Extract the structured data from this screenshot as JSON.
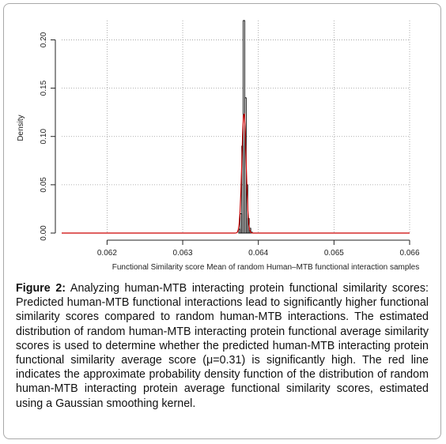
{
  "chart_data": {
    "type": "histogram",
    "xlabel": "Functional Similarity score Mean of random Human–MTB functional interaction samples",
    "ylabel": "Density",
    "xlim": [
      0.0614,
      0.066
    ],
    "ylim": [
      0,
      0.22
    ],
    "x_ticks": [
      "0.062",
      "0.063",
      "0.064",
      "0.065",
      "0.066"
    ],
    "x_tick_values": [
      0.062,
      0.063,
      0.064,
      0.065,
      0.066
    ],
    "y_ticks": [
      "0.00",
      "0.05",
      "0.10",
      "0.15",
      "0.20"
    ],
    "y_tick_values": [
      0.0,
      0.05,
      0.1,
      0.15,
      0.2
    ],
    "grid": true,
    "bin_width": 2e-05,
    "bins_x": [
      0.06374,
      0.06376,
      0.06378,
      0.0638,
      0.06382,
      0.06384,
      0.06386,
      0.06388,
      0.0639
    ],
    "bins_density": [
      0.004,
      0.02,
      0.09,
      0.22,
      0.14,
      0.05,
      0.015,
      0.005,
      0.001
    ],
    "density_curve": {
      "mean": 0.06381,
      "peak": 0.125,
      "sd": 2.8e-05,
      "color": "#cc0000"
    },
    "bar_color": "#000000"
  },
  "caption": {
    "label": "Figure 2:",
    "text": " Analyzing human-MTB interacting protein functional similarity scores: Predicted human-MTB functional interactions lead to significantly higher functional similarity scores compared to random human-MTB interactions. The estimated distribution of random human-MTB interacting protein functional average similarity scores is used to determine whether the predicted human-MTB interacting protein functional similarity average score (μ=0.31) is significantly high. The red line indicates the approximate probability density function of the distribution of random human-MTB interacting protein average functional similarity scores, estimated using a Gaussian smoothing kernel."
  }
}
